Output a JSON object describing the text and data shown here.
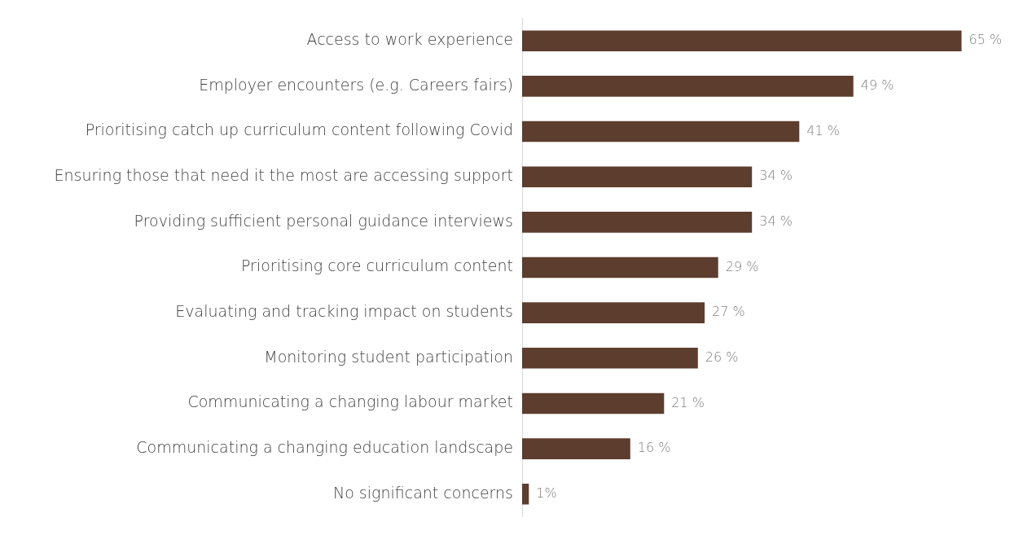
{
  "chart_data": {
    "type": "bar",
    "orientation": "horizontal",
    "categories": [
      "Access to work experience",
      "Employer encounters (e.g. Careers fairs)",
      "Prioritising catch up curriculum content following Covid",
      "Ensuring those that need it the most are accessing support",
      "Providing sufficient personal guidance interviews",
      "Prioritising core curriculum content",
      "Evaluating and tracking impact on students",
      "Monitoring student participation",
      "Communicating a changing labour market",
      "Communicating a changing education landscape",
      "No significant concerns"
    ],
    "values": [
      65,
      49,
      41,
      34,
      34,
      29,
      27,
      26,
      21,
      16,
      1
    ],
    "value_labels": [
      "65 %",
      "49 %",
      "41 %",
      "34 %",
      "34 %",
      "29 %",
      "27 %",
      "26 %",
      "21 %",
      "16 %",
      "1%"
    ],
    "color": "#5c3d2e",
    "grid": false,
    "legend": false,
    "tick_labels": "y"
  }
}
